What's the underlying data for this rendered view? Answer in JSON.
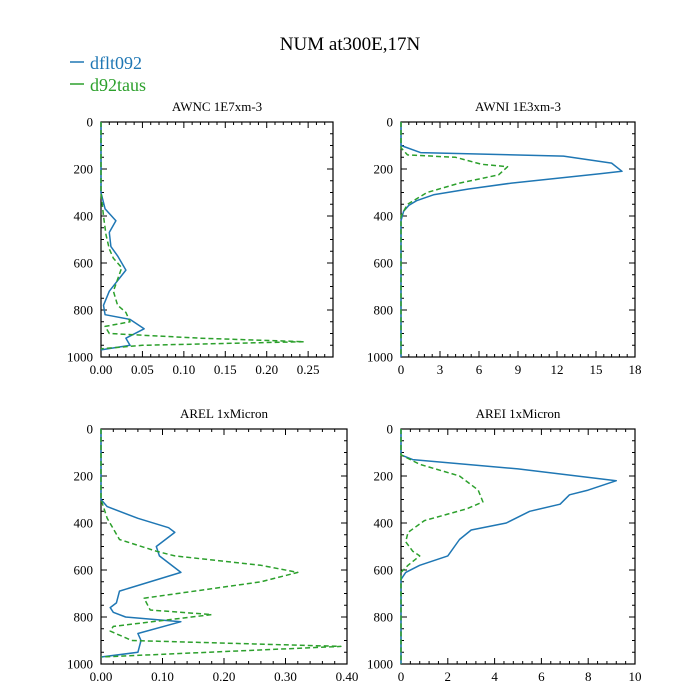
{
  "figure": {
    "title": "NUM at300E,17N",
    "legend": [
      {
        "label": "dflt092",
        "color": "#1f77b4",
        "style": "solid"
      },
      {
        "label": "d92taus",
        "color": "#2ca02c",
        "style": "dashed"
      }
    ]
  },
  "chart_data": [
    {
      "type": "line",
      "title": "AWNC  1E7xm-3",
      "xlim": [
        0,
        0.28
      ],
      "ylim": [
        0,
        1000
      ],
      "y_inverted": true,
      "xticks": [
        "0.00",
        "0.05",
        "0.10",
        "0.15",
        "0.20",
        "0.25"
      ],
      "xtick_values": [
        0,
        0.05,
        0.1,
        0.15,
        0.2,
        0.25
      ],
      "yticks": [
        "0",
        "200",
        "400",
        "600",
        "800",
        "1000"
      ],
      "ytick_values": [
        0,
        200,
        400,
        600,
        800,
        1000
      ],
      "series": [
        {
          "name": "dflt092",
          "x": [
            0,
            0,
            0.005,
            0.018,
            0.01,
            0.012,
            0.02,
            0.03,
            0.01,
            0.003,
            0.005,
            0.035,
            0.052,
            0.03,
            0.035,
            0.0
          ],
          "y": [
            0,
            300,
            370,
            420,
            470,
            530,
            570,
            630,
            720,
            780,
            820,
            840,
            880,
            920,
            950,
            970
          ]
        },
        {
          "name": "d92taus",
          "x": [
            0,
            0,
            0.003,
            0.006,
            0.01,
            0.015,
            0.025,
            0.015,
            0.02,
            0.03,
            0.035,
            0.005,
            0.01,
            0.12,
            0.245,
            0.05,
            0.0
          ],
          "y": [
            0,
            300,
            400,
            480,
            540,
            580,
            620,
            720,
            780,
            810,
            850,
            870,
            900,
            920,
            935,
            950,
            965
          ]
        }
      ]
    },
    {
      "type": "line",
      "title": "AWNI  1E3xm-3",
      "xlim": [
        0,
        18
      ],
      "ylim": [
        0,
        1000
      ],
      "y_inverted": true,
      "xticks": [
        "0",
        "3",
        "6",
        "9",
        "12",
        "15",
        "18"
      ],
      "xtick_values": [
        0,
        3,
        6,
        9,
        12,
        15,
        18
      ],
      "yticks": [
        "0",
        "200",
        "400",
        "600",
        "800",
        "1000"
      ],
      "ytick_values": [
        0,
        200,
        400,
        600,
        800,
        1000
      ],
      "series": [
        {
          "name": "dflt092",
          "x": [
            0,
            0,
            1.5,
            12.5,
            16.2,
            17.0,
            15.3,
            8.5,
            5.2,
            2.5,
            1.2,
            0.6,
            0.2,
            0,
            0
          ],
          "y": [
            0,
            100,
            130,
            145,
            175,
            210,
            220,
            260,
            285,
            310,
            335,
            355,
            380,
            420,
            1000
          ]
        },
        {
          "name": "d92taus",
          "x": [
            0,
            0,
            0.5,
            4.2,
            6.2,
            8.2,
            7.5,
            4.5,
            2.0,
            0.5,
            0,
            0
          ],
          "y": [
            0,
            110,
            140,
            150,
            180,
            190,
            225,
            260,
            300,
            350,
            400,
            1000
          ]
        }
      ]
    },
    {
      "type": "line",
      "title": "AREL  1xMicron",
      "xlim": [
        0,
        0.4
      ],
      "ylim": [
        0,
        1000
      ],
      "y_inverted": true,
      "xticks": [
        "0.00",
        "0.10",
        "0.20",
        "0.30",
        "0.40"
      ],
      "xtick_values": [
        0,
        0.1,
        0.2,
        0.3,
        0.4
      ],
      "yticks": [
        "0",
        "200",
        "400",
        "600",
        "800",
        "1000"
      ],
      "ytick_values": [
        0,
        200,
        400,
        600,
        800,
        1000
      ],
      "series": [
        {
          "name": "dflt092",
          "x": [
            0,
            0,
            0.01,
            0.06,
            0.11,
            0.12,
            0.09,
            0.095,
            0.13,
            0.03,
            0.025,
            0.015,
            0.02,
            0.04,
            0.13,
            0.06,
            0.065,
            0.06,
            0.0
          ],
          "y": [
            0,
            300,
            330,
            380,
            420,
            440,
            500,
            540,
            610,
            690,
            740,
            760,
            780,
            800,
            820,
            870,
            900,
            950,
            970
          ]
        },
        {
          "name": "d92taus",
          "x": [
            0,
            0,
            0.01,
            0.03,
            0.09,
            0.12,
            0.26,
            0.32,
            0.26,
            0.07,
            0.08,
            0.18,
            0.02,
            0.015,
            0.05,
            0.39,
            0.0
          ],
          "y": [
            0,
            300,
            380,
            470,
            520,
            540,
            580,
            610,
            650,
            720,
            770,
            790,
            840,
            860,
            900,
            925,
            970
          ]
        }
      ]
    },
    {
      "type": "line",
      "title": "AREI  1xMicron",
      "xlim": [
        0,
        10
      ],
      "ylim": [
        0,
        1000
      ],
      "y_inverted": true,
      "xticks": [
        "0",
        "2",
        "4",
        "6",
        "8",
        "10"
      ],
      "xtick_values": [
        0,
        2,
        4,
        6,
        8,
        10
      ],
      "yticks": [
        "0",
        "200",
        "400",
        "600",
        "800",
        "1000"
      ],
      "ytick_values": [
        0,
        200,
        400,
        600,
        800,
        1000
      ],
      "series": [
        {
          "name": "dflt092",
          "x": [
            0,
            0,
            0.5,
            5.0,
            9.2,
            8.0,
            7.2,
            6.8,
            5.5,
            4.5,
            3.0,
            2.5,
            2.0,
            0.8,
            0.2,
            0,
            0
          ],
          "y": [
            0,
            110,
            130,
            170,
            220,
            260,
            280,
            320,
            350,
            400,
            430,
            470,
            540,
            580,
            610,
            640,
            1000
          ]
        },
        {
          "name": "d92taus",
          "x": [
            0,
            0,
            0.8,
            2.5,
            3.3,
            3.5,
            2.8,
            1.0,
            0.3,
            0.2,
            0.5,
            0.8,
            0.3,
            0,
            0
          ],
          "y": [
            0,
            110,
            150,
            200,
            260,
            310,
            340,
            390,
            440,
            480,
            520,
            540,
            580,
            610,
            1000
          ]
        }
      ]
    }
  ]
}
